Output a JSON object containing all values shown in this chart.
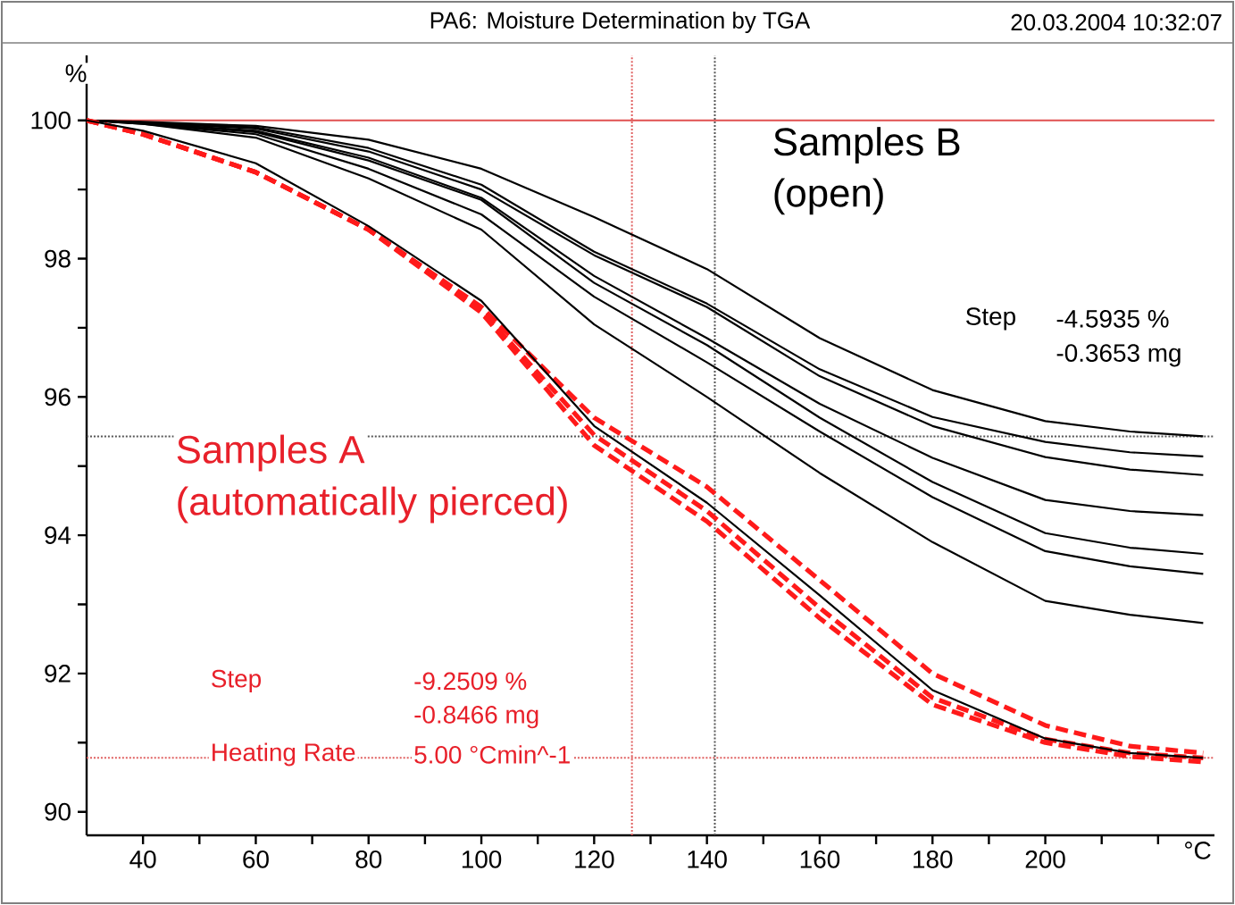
{
  "chart_data": {
    "type": "line",
    "title": "PA6: Moisture Determination by TGA",
    "subtitle": "20.03.2004 10:32:07",
    "xlabel": "°C",
    "ylabel": "%",
    "x": [
      30,
      40,
      60,
      80,
      100,
      120,
      140,
      160,
      180,
      200,
      215,
      228
    ],
    "series": [
      {
        "color": "#000000",
        "line_style": "solid",
        "values": [
          100,
          99.98,
          99.92,
          99.72,
          99.3,
          98.6,
          97.85,
          96.85,
          96.1,
          95.65,
          95.5,
          95.43
        ]
      },
      {
        "color": "#000000",
        "line_style": "solid",
        "values": [
          100,
          99.97,
          99.9,
          99.6,
          99.07,
          98.1,
          97.35,
          96.4,
          95.71,
          95.35,
          95.2,
          95.14
        ]
      },
      {
        "color": "#000000",
        "line_style": "solid",
        "values": [
          100,
          99.97,
          99.88,
          99.55,
          99.0,
          98.05,
          97.3,
          96.3,
          95.58,
          95.13,
          94.95,
          94.87
        ]
      },
      {
        "color": "#000000",
        "line_style": "solid",
        "values": [
          100,
          99.96,
          99.85,
          99.46,
          98.88,
          97.75,
          96.85,
          95.9,
          95.12,
          94.51,
          94.35,
          94.29
        ]
      },
      {
        "color": "#000000",
        "line_style": "solid",
        "values": [
          100,
          99.96,
          99.83,
          99.42,
          98.85,
          97.65,
          96.75,
          95.7,
          94.77,
          94.03,
          93.82,
          93.73
        ]
      },
      {
        "color": "#000000",
        "line_style": "solid",
        "values": [
          100,
          99.95,
          99.8,
          99.3,
          98.64,
          97.45,
          96.5,
          95.5,
          94.55,
          93.77,
          93.55,
          93.44
        ]
      },
      {
        "color": "#000000",
        "line_style": "solid",
        "values": [
          100,
          99.95,
          99.75,
          99.16,
          98.42,
          97.05,
          96.0,
          94.9,
          93.9,
          93.05,
          92.85,
          92.73
        ]
      },
      {
        "color": "#ff1a1a",
        "line_style": "dashed",
        "values": [
          100,
          99.8,
          99.25,
          98.42,
          97.3,
          95.7,
          94.7,
          93.35,
          92.0,
          91.25,
          90.95,
          90.85
        ]
      },
      {
        "color": "#ff1a1a",
        "line_style": "dashed",
        "values": [
          100,
          99.8,
          99.25,
          98.42,
          97.25,
          95.45,
          94.35,
          92.95,
          91.65,
          91.05,
          90.85,
          90.78
        ]
      },
      {
        "color": "#ff1a1a",
        "line_style": "dashed",
        "values": [
          100,
          99.8,
          99.25,
          98.42,
          97.22,
          95.3,
          94.2,
          92.8,
          91.55,
          91.0,
          90.8,
          90.72
        ]
      },
      {
        "color": "#000000",
        "line_style": "solid",
        "values": [
          100,
          99.85,
          99.38,
          98.47,
          97.39,
          95.58,
          94.47,
          93.13,
          91.76,
          91.06,
          90.85,
          90.78
        ]
      }
    ],
    "xlim": [
      30,
      230
    ],
    "ylim": [
      89.66,
      100.94
    ],
    "xticks": [
      40,
      {
        "value": 50,
        "label": null
      },
      60,
      {
        "value": 70,
        "label": null
      },
      80,
      {
        "value": 90,
        "label": null
      },
      100,
      {
        "value": 110,
        "label": null
      },
      120,
      {
        "value": 130,
        "label": null
      },
      140,
      {
        "value": 150,
        "label": null
      },
      160,
      {
        "value": 170,
        "label": null
      },
      180,
      {
        "value": 190,
        "label": null
      },
      200,
      {
        "value": 210,
        "label": null
      },
      {
        "value": 220,
        "label": null
      }
    ],
    "yticks": [
      90,
      {
        "value": 91,
        "label": null
      },
      92,
      {
        "value": 93,
        "label": null
      },
      94,
      {
        "value": 95,
        "label": null
      },
      96,
      {
        "value": 97,
        "label": null
      },
      98,
      {
        "value": 99,
        "label": null
      },
      100
    ],
    "ref_lines": [
      {
        "axis": "y",
        "value": 100,
        "color": "#e05050",
        "line_style": "solid"
      },
      {
        "axis": "x",
        "value": 126.7,
        "color": "#e06060",
        "line_style": "dotted"
      },
      {
        "axis": "y",
        "value": 90.78,
        "color": "#e06060",
        "line_style": "dotted"
      },
      {
        "axis": "x",
        "value": 141.4,
        "color": "#555555",
        "line_style": "dotted"
      },
      {
        "axis": "y",
        "value": 95.43,
        "color": "#555555",
        "line_style": "dotted"
      }
    ],
    "annotations": [
      "Samples B",
      "(open)",
      "Step",
      "-4.5935 %",
      "-0.3653 mg",
      "Samples A",
      "(automatically pierced)",
      "Step",
      "-9.2509 %",
      "-0.8466 mg",
      "Heating Rate",
      "5.00 °Cmin^-1"
    ],
    "grid": false,
    "marker": "none"
  }
}
